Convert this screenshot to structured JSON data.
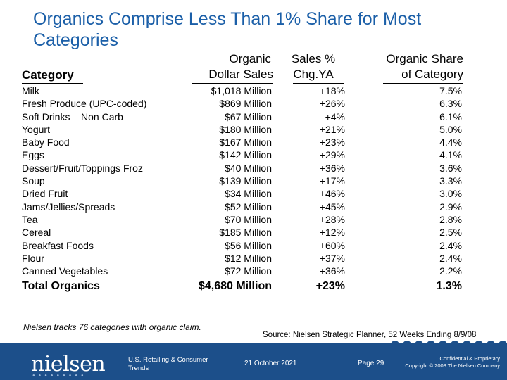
{
  "title": "Organics Comprise Less Than 1% Share for Most Categories",
  "headers": {
    "category": "Category",
    "sales_line1": "Organic",
    "sales_line2": "Dollar Sales",
    "chg_line1": "Sales %",
    "chg_line2": "Chg.YA",
    "share_line1": "Organic Share",
    "share_line2": "of Category"
  },
  "rows": [
    {
      "category": "Milk",
      "sales": "$1,018 Million",
      "chg": "+18%",
      "share": "7.5%"
    },
    {
      "category": "Fresh Produce (UPC-coded)",
      "sales": "$869 Million",
      "chg": "+26%",
      "share": "6.3%"
    },
    {
      "category": "Soft Drinks – Non Carb",
      "sales": "$67 Million",
      "chg": "+4%",
      "share": "6.1%"
    },
    {
      "category": "Yogurt",
      "sales": "$180 Million",
      "chg": "+21%",
      "share": "5.0%"
    },
    {
      "category": "Baby Food",
      "sales": "$167 Million",
      "chg": "+23%",
      "share": "4.4%"
    },
    {
      "category": "Eggs",
      "sales": "$142 Million",
      "chg": "+29%",
      "share": "4.1%"
    },
    {
      "category": "Dessert/Fruit/Toppings Froz",
      "sales": "$40 Million",
      "chg": "+36%",
      "share": "3.6%"
    },
    {
      "category": "Soup",
      "sales": "$139 Million",
      "chg": "+17%",
      "share": "3.3%"
    },
    {
      "category": "Dried Fruit",
      "sales": "$34 Million",
      "chg": "+46%",
      "share": "3.0%"
    },
    {
      "category": "Jams/Jellies/Spreads",
      "sales": "$52 Million",
      "chg": "+45%",
      "share": "2.9%"
    },
    {
      "category": "Tea",
      "sales": "$70 Million",
      "chg": "+28%",
      "share": "2.8%"
    },
    {
      "category": "Cereal",
      "sales": "$185 Million",
      "chg": "+12%",
      "share": "2.5%"
    },
    {
      "category": "Breakfast Foods",
      "sales": "$56 Million",
      "chg": "+60%",
      "share": "2.4%"
    },
    {
      "category": "Flour",
      "sales": "$12 Million",
      "chg": "+37%",
      "share": "2.4%"
    },
    {
      "category": "Canned Vegetables",
      "sales": "$72 Million",
      "chg": "+36%",
      "share": "2.2%"
    }
  ],
  "total": {
    "category": "Total Organics",
    "sales": "$4,680 Million",
    "chg": "+23%",
    "share": "1.3%"
  },
  "note": "Nielsen tracks 76 categories with organic claim.",
  "source": "Source:  Nielsen Strategic Planner, 52 Weeks Ending 8/9/08",
  "footer": {
    "logo": "nielsen",
    "dept": "U.S. Retailing & Consumer Trends",
    "date": "21 October 2021",
    "page": "Page 29",
    "confidential": "Confidential & Proprietary",
    "copyright": "Copyright © 2008 The Nielsen Company"
  },
  "colors": {
    "title": "#1b5fa8",
    "footer_bg": "#1c4f8a"
  }
}
